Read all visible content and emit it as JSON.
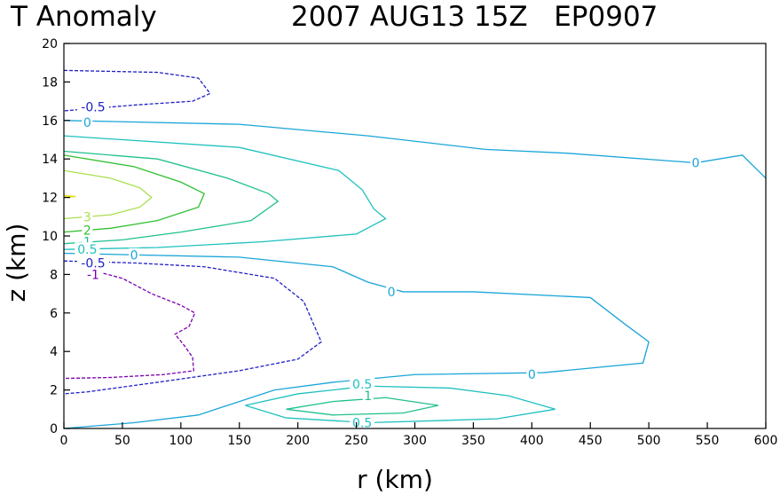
{
  "chart_data": {
    "type": "contour",
    "title_left": "T Anomaly",
    "title_right": "2007 AUG13 15Z   EP0907",
    "xlabel": "r (km)",
    "ylabel": "z (km)",
    "xlim": [
      0,
      600
    ],
    "ylim": [
      0,
      20
    ],
    "xticks": [
      0,
      50,
      100,
      150,
      200,
      250,
      300,
      350,
      400,
      450,
      500,
      550,
      600
    ],
    "yticks": [
      0,
      2,
      4,
      6,
      8,
      10,
      12,
      14,
      16,
      18,
      20
    ],
    "grid": false,
    "contours": [
      {
        "level": "-1",
        "color": "#7a00b0",
        "dashed": true,
        "points": [
          [
            25,
            8.2
          ],
          [
            50,
            7.8
          ],
          [
            75,
            7
          ],
          [
            100,
            6.4
          ],
          [
            112,
            6.0
          ],
          [
            107,
            5.3
          ],
          [
            95,
            4.9
          ],
          [
            103,
            4.3
          ],
          [
            110,
            3.7
          ],
          [
            111,
            3.0
          ],
          [
            85,
            2.8
          ],
          [
            40,
            2.65
          ],
          [
            0,
            2.6
          ]
        ]
      },
      {
        "level": "-0.5",
        "color": "#2020c8",
        "dashed": true,
        "points": [
          [
            0,
            8.7
          ],
          [
            60,
            8.6
          ],
          [
            120,
            8.4
          ],
          [
            180,
            7.8
          ],
          [
            205,
            6.6
          ],
          [
            220,
            4.5
          ],
          [
            200,
            3.6
          ],
          [
            150,
            3.0
          ],
          [
            80,
            2.4
          ],
          [
            20,
            1.9
          ],
          [
            0,
            1.8
          ]
        ]
      },
      {
        "level": "-0.5",
        "color": "#2020c8",
        "dashed": true,
        "points": [
          [
            0,
            18.6
          ],
          [
            80,
            18.5
          ],
          [
            115,
            18.2
          ],
          [
            125,
            17.4
          ],
          [
            110,
            17.0
          ],
          [
            60,
            16.8
          ],
          [
            20,
            16.6
          ],
          [
            0,
            16.5
          ]
        ]
      },
      {
        "level": "0",
        "color": "#1aa5d8",
        "dashed": false,
        "points": [
          [
            0,
            16.0
          ],
          [
            150,
            15.8
          ],
          [
            260,
            15.2
          ],
          [
            360,
            14.5
          ],
          [
            430,
            14.3
          ],
          [
            540,
            13.8
          ],
          [
            580,
            14.2
          ],
          [
            600,
            13.0
          ]
        ]
      },
      {
        "level": "0",
        "color": "#1aa5d8",
        "dashed": false,
        "points": [
          [
            0,
            9.1
          ],
          [
            150,
            8.9
          ],
          [
            230,
            8.4
          ],
          [
            260,
            7.6
          ],
          [
            290,
            7.1
          ],
          [
            350,
            7.1
          ],
          [
            450,
            6.8
          ],
          [
            480,
            5.4
          ],
          [
            500,
            4.5
          ],
          [
            495,
            3.4
          ],
          [
            410,
            2.9
          ],
          [
            300,
            2.8
          ],
          [
            230,
            2.4
          ],
          [
            180,
            2.0
          ],
          [
            130,
            1.0
          ],
          [
            115,
            0.7
          ],
          [
            60,
            0.3
          ],
          [
            0,
            0.0
          ]
        ]
      },
      {
        "level": "0.5",
        "color": "#20c0c0",
        "dashed": false,
        "points": [
          [
            0,
            15.2
          ],
          [
            150,
            14.6
          ],
          [
            235,
            13.4
          ],
          [
            255,
            12.4
          ],
          [
            265,
            11.4
          ],
          [
            275,
            10.9
          ],
          [
            250,
            10.1
          ],
          [
            170,
            9.7
          ],
          [
            80,
            9.4
          ],
          [
            0,
            9.3
          ]
        ]
      },
      {
        "level": "0.5",
        "color": "#20c0c0",
        "dashed": false,
        "points": [
          [
            155,
            1.2
          ],
          [
            200,
            1.8
          ],
          [
            260,
            2.2
          ],
          [
            330,
            2.1
          ],
          [
            380,
            1.7
          ],
          [
            420,
            1.0
          ],
          [
            370,
            0.5
          ],
          [
            260,
            0.3
          ],
          [
            190,
            0.55
          ],
          [
            155,
            1.2
          ]
        ]
      },
      {
        "level": "1",
        "color": "#20c090",
        "dashed": false,
        "points": [
          [
            0,
            14.4
          ],
          [
            80,
            14.0
          ],
          [
            140,
            13.0
          ],
          [
            175,
            12.2
          ],
          [
            183,
            11.8
          ],
          [
            160,
            10.8
          ],
          [
            100,
            10.2
          ],
          [
            50,
            9.8
          ],
          [
            0,
            9.6
          ]
        ]
      },
      {
        "level": "1",
        "color": "#20c090",
        "dashed": false,
        "points": [
          [
            190,
            1.0
          ],
          [
            230,
            1.4
          ],
          [
            275,
            1.6
          ],
          [
            320,
            1.2
          ],
          [
            290,
            0.8
          ],
          [
            230,
            0.7
          ],
          [
            190,
            1.0
          ]
        ]
      },
      {
        "level": "2",
        "color": "#30c030",
        "dashed": false,
        "points": [
          [
            0,
            14.2
          ],
          [
            60,
            13.6
          ],
          [
            100,
            12.8
          ],
          [
            120,
            12.2
          ],
          [
            115,
            11.5
          ],
          [
            80,
            10.8
          ],
          [
            40,
            10.4
          ],
          [
            0,
            10.2
          ]
        ]
      },
      {
        "level": "3",
        "color": "#a8e050",
        "dashed": false,
        "points": [
          [
            0,
            13.4
          ],
          [
            40,
            13.0
          ],
          [
            65,
            12.5
          ],
          [
            75,
            12.0
          ],
          [
            65,
            11.5
          ],
          [
            40,
            11.1
          ],
          [
            0,
            10.9
          ]
        ]
      },
      {
        "level": "4",
        "color": "#e0e000",
        "dashed": false,
        "points": [
          [
            0,
            12.1
          ],
          [
            10,
            12.05
          ],
          [
            0,
            12.0
          ]
        ]
      }
    ],
    "labels": [
      {
        "text": "-0.5",
        "x": 25,
        "y": 16.7,
        "color": "#2020c8"
      },
      {
        "text": "0",
        "x": 20,
        "y": 15.9,
        "color": "#1aa5d8"
      },
      {
        "text": "0",
        "x": 540,
        "y": 13.8,
        "color": "#1aa5d8"
      },
      {
        "text": "3",
        "x": 20,
        "y": 11.0,
        "color": "#a8e050"
      },
      {
        "text": "2",
        "x": 20,
        "y": 10.3,
        "color": "#30c030"
      },
      {
        "text": "1",
        "x": 20,
        "y": 9.7,
        "color": "#20c090"
      },
      {
        "text": "0.5",
        "x": 20,
        "y": 9.3,
        "color": "#20c0c0"
      },
      {
        "text": "0",
        "x": 60,
        "y": 9.0,
        "color": "#1aa5d8"
      },
      {
        "text": "-0.5",
        "x": 25,
        "y": 8.6,
        "color": "#2020c8"
      },
      {
        "text": "-1",
        "x": 25,
        "y": 8.0,
        "color": "#7a00b0"
      },
      {
        "text": "0",
        "x": 280,
        "y": 7.1,
        "color": "#1aa5d8"
      },
      {
        "text": "0",
        "x": 400,
        "y": 2.8,
        "color": "#1aa5d8"
      },
      {
        "text": "0.5",
        "x": 255,
        "y": 2.3,
        "color": "#20c0c0"
      },
      {
        "text": "1",
        "x": 260,
        "y": 1.7,
        "color": "#20c090"
      },
      {
        "text": "0.5",
        "x": 255,
        "y": 0.3,
        "color": "#20c0c0"
      }
    ]
  }
}
